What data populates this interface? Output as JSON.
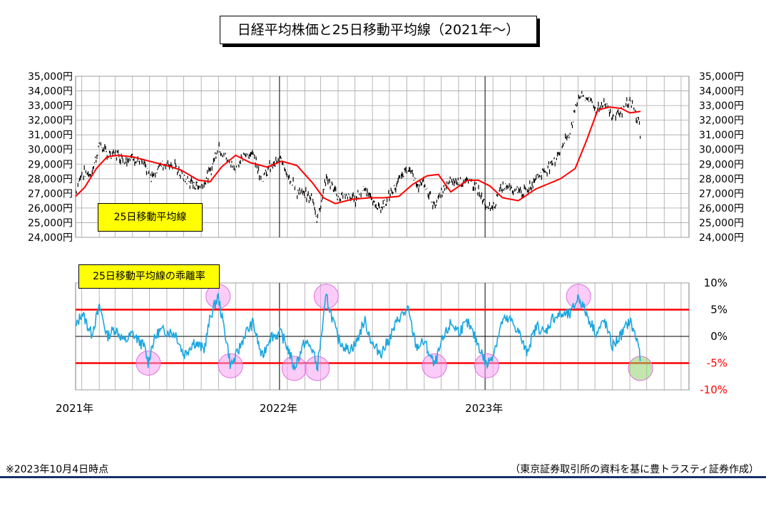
{
  "title": "日経平均株価と25日移動平均線（2021年～）",
  "footnote_left": "※2023年10月4日時点",
  "footnote_right": "（東京証券取引所の資料を基に豊トラスティ証券作成）",
  "colors": {
    "price": "#000000",
    "ma25": "#ff0000",
    "deviation": "#1aa7e0",
    "threshold": "#ff0000",
    "highlight": "#f5a3f0",
    "highlight_last": "#8fd26a",
    "grid": "#a6a6a6",
    "label_box": "#ffff00",
    "rule": "#17306a"
  },
  "chart_data": [
    {
      "type": "line",
      "title": "日経平均株価と25日移動平均線（2021年～）",
      "label": "25日移動平均線",
      "ylim": [
        24000,
        35000
      ],
      "y_ticks": [
        35000,
        34000,
        33000,
        32000,
        31000,
        30000,
        29000,
        28000,
        27000,
        26000,
        25000,
        24000
      ],
      "y_tick_labels": [
        "35,000円",
        "34,000円",
        "33,000円",
        "32,000円",
        "31,000円",
        "30,000円",
        "29,000円",
        "28,000円",
        "27,000円",
        "26,000円",
        "25,000円",
        "24,000円"
      ],
      "x_tick_labels": [
        "2021年",
        "2022年",
        "2023年"
      ],
      "x_range": [
        "2021-01-04",
        "2023-12-29"
      ],
      "grid": true,
      "series": [
        {
          "name": "日経平均株価",
          "style": "daily-bars",
          "x": [
            "2021-01-04",
            "2021-01-15",
            "2021-02-01",
            "2021-02-16",
            "2021-03-01",
            "2021-03-15",
            "2021-04-01",
            "2021-04-15",
            "2021-05-06",
            "2021-05-17",
            "2021-06-01",
            "2021-06-15",
            "2021-07-01",
            "2021-07-15",
            "2021-08-02",
            "2021-08-16",
            "2021-09-01",
            "2021-09-14",
            "2021-10-01",
            "2021-10-15",
            "2021-11-01",
            "2021-11-15",
            "2021-12-01",
            "2021-12-15",
            "2022-01-04",
            "2022-01-17",
            "2022-02-01",
            "2022-02-15",
            "2022-03-01",
            "2022-03-09",
            "2022-03-25",
            "2022-04-15",
            "2022-05-02",
            "2022-05-16",
            "2022-06-01",
            "2022-06-17",
            "2022-07-01",
            "2022-07-15",
            "2022-08-01",
            "2022-08-17",
            "2022-09-01",
            "2022-09-15",
            "2022-10-03",
            "2022-10-17",
            "2022-11-01",
            "2022-11-15",
            "2022-12-01",
            "2022-12-15",
            "2023-01-04",
            "2023-01-16",
            "2023-02-01",
            "2023-02-15",
            "2023-03-01",
            "2023-03-15",
            "2023-04-03",
            "2023-04-17",
            "2023-05-01",
            "2023-05-15",
            "2023-06-01",
            "2023-06-16",
            "2023-07-03",
            "2023-07-18",
            "2023-08-01",
            "2023-08-15",
            "2023-09-01",
            "2023-09-15",
            "2023-10-02",
            "2023-10-04"
          ],
          "values": [
            27200,
            28400,
            28300,
            30400,
            29600,
            29800,
            29300,
            29500,
            28900,
            28000,
            28900,
            29100,
            28800,
            28000,
            27600,
            27500,
            28500,
            30300,
            29200,
            28700,
            29600,
            29800,
            27900,
            28800,
            29300,
            28300,
            27100,
            26900,
            26600,
            25200,
            28100,
            26800,
            26800,
            26600,
            27500,
            26300,
            26000,
            26800,
            27800,
            28900,
            27600,
            27600,
            26200,
            27100,
            27800,
            27900,
            27800,
            27600,
            25900,
            26100,
            27500,
            27500,
            27300,
            27000,
            28200,
            28500,
            29100,
            30000,
            31200,
            33700,
            33500,
            32700,
            33200,
            32300,
            32700,
            33300,
            31800,
            30500
          ],
          "low": [
            26900,
            27700,
            27900,
            29500,
            28700,
            29000,
            28600,
            29000,
            27600,
            27600,
            28400,
            28700,
            28400,
            27600,
            27300,
            27200,
            28000,
            29900,
            28800,
            28400,
            29200,
            29400,
            27500,
            28300,
            28700,
            27900,
            26500,
            26400,
            25000,
            24700,
            27600,
            26400,
            26300,
            26200,
            26900,
            25500,
            25700,
            26400,
            27500,
            28500,
            27200,
            27000,
            25600,
            26600,
            27400,
            27500,
            27300,
            26900,
            25600,
            25800,
            27200,
            27100,
            26900,
            26600,
            27700,
            28200,
            28700,
            29500,
            30700,
            33000,
            32700,
            32000,
            32600,
            31600,
            32200,
            32800,
            31300,
            30400
          ],
          "high": [
            27400,
            28800,
            28600,
            30700,
            30200,
            30200,
            29700,
            29800,
            29300,
            28500,
            29200,
            29500,
            29100,
            28400,
            28000,
            27900,
            28900,
            30700,
            29600,
            29100,
            29900,
            30100,
            28300,
            29200,
            29400,
            28700,
            27500,
            27300,
            27000,
            25700,
            28400,
            27200,
            27100,
            27000,
            27800,
            26900,
            26300,
            27100,
            28100,
            29200,
            28000,
            28000,
            26600,
            27400,
            28100,
            28300,
            28100,
            27900,
            26200,
            26400,
            27800,
            27700,
            27600,
            27400,
            28500,
            28800,
            29300,
            30400,
            31600,
            33800,
            33800,
            33000,
            33500,
            32700,
            33000,
            33600,
            32200,
            30800
          ]
        },
        {
          "name": "25日移動平均線",
          "x": [
            "2021-01-04",
            "2021-01-20",
            "2021-02-10",
            "2021-03-01",
            "2021-03-20",
            "2021-04-15",
            "2021-05-15",
            "2021-06-15",
            "2021-07-10",
            "2021-08-10",
            "2021-08-31",
            "2021-09-20",
            "2021-10-15",
            "2021-11-10",
            "2021-12-10",
            "2022-01-05",
            "2022-02-01",
            "2022-03-01",
            "2022-03-20",
            "2022-04-10",
            "2022-05-10",
            "2022-06-10",
            "2022-07-05",
            "2022-08-01",
            "2022-08-25",
            "2022-09-20",
            "2022-10-10",
            "2022-11-01",
            "2022-12-01",
            "2022-12-20",
            "2023-01-10",
            "2023-02-01",
            "2023-03-01",
            "2023-04-01",
            "2023-04-20",
            "2023-05-15",
            "2023-06-10",
            "2023-06-30",
            "2023-07-20",
            "2023-08-10",
            "2023-08-31",
            "2023-09-15",
            "2023-10-04"
          ],
          "values": [
            26800,
            27400,
            28700,
            29500,
            29600,
            29500,
            29200,
            28900,
            28600,
            27900,
            27800,
            28800,
            29600,
            29100,
            28800,
            29200,
            28900,
            27700,
            26700,
            26300,
            26600,
            26700,
            26700,
            26800,
            27600,
            28200,
            28300,
            27100,
            27900,
            27900,
            27500,
            26700,
            26500,
            27300,
            27600,
            28000,
            28700,
            30600,
            32700,
            32900,
            32800,
            32500,
            32600
          ]
        }
      ]
    },
    {
      "type": "line",
      "title": "25日移動平均線の乖離率",
      "ylim": [
        -10,
        10
      ],
      "y_ticks": [
        10,
        5,
        0,
        -5,
        -10
      ],
      "y_tick_labels": [
        "10%",
        "5%",
        "0%",
        "-5%",
        "-10%"
      ],
      "x_tick_labels": [
        "2021年",
        "2022年",
        "2023年"
      ],
      "x_range": [
        "2021-01-04",
        "2023-12-29"
      ],
      "grid": true,
      "threshold_lines": [
        5,
        -5
      ],
      "series": [
        {
          "name": "乖離率",
          "x": [
            "2021-01-04",
            "2021-01-15",
            "2021-02-01",
            "2021-02-16",
            "2021-03-01",
            "2021-03-15",
            "2021-04-01",
            "2021-04-15",
            "2021-05-06",
            "2021-05-13",
            "2021-05-20",
            "2021-06-01",
            "2021-06-15",
            "2021-07-01",
            "2021-07-15",
            "2021-08-02",
            "2021-08-20",
            "2021-09-01",
            "2021-09-14",
            "2021-10-01",
            "2021-10-06",
            "2021-10-15",
            "2021-11-01",
            "2021-11-15",
            "2021-12-01",
            "2021-12-15",
            "2022-01-04",
            "2022-01-17",
            "2022-01-27",
            "2022-02-15",
            "2022-03-01",
            "2022-03-09",
            "2022-03-25",
            "2022-04-15",
            "2022-05-02",
            "2022-05-16",
            "2022-06-01",
            "2022-06-17",
            "2022-07-01",
            "2022-07-15",
            "2022-08-01",
            "2022-08-17",
            "2022-09-01",
            "2022-09-15",
            "2022-10-03",
            "2022-10-17",
            "2022-11-01",
            "2022-11-15",
            "2022-12-01",
            "2022-12-20",
            "2023-01-04",
            "2023-01-16",
            "2023-02-01",
            "2023-02-15",
            "2023-03-01",
            "2023-03-15",
            "2023-04-03",
            "2023-04-17",
            "2023-05-01",
            "2023-05-15",
            "2023-06-01",
            "2023-06-16",
            "2023-07-03",
            "2023-07-18",
            "2023-08-01",
            "2023-08-15",
            "2023-09-01",
            "2023-09-15",
            "2023-10-02",
            "2023-10-04"
          ],
          "values": [
            1.5,
            4.5,
            0.5,
            5.5,
            0.0,
            1.5,
            -1.0,
            0.5,
            -2.0,
            -5.0,
            -1.5,
            1.0,
            1.0,
            0.5,
            -3.5,
            -1.0,
            -2.5,
            4.0,
            7.5,
            -2.0,
            -5.5,
            -4.0,
            0.5,
            2.5,
            -4.0,
            0.0,
            0.5,
            -2.5,
            -6.0,
            -1.0,
            -2.5,
            -6.0,
            7.5,
            -0.5,
            -2.5,
            -1.5,
            3.0,
            -2.0,
            -3.0,
            -0.5,
            3.5,
            5.0,
            -2.0,
            -1.0,
            -5.5,
            -1.0,
            2.5,
            1.0,
            2.5,
            -1.5,
            -5.5,
            -3.0,
            3.0,
            3.0,
            1.0,
            -3.0,
            2.0,
            0.5,
            3.5,
            4.0,
            4.0,
            7.5,
            3.5,
            0.5,
            3.0,
            -2.0,
            0.5,
            3.0,
            -2.0,
            -6.0
          ]
        }
      ],
      "highlights": [
        "2021-05-13",
        "2021-09-14",
        "2021-10-06",
        "2022-01-27",
        "2022-03-09",
        "2022-03-25",
        "2022-10-03",
        "2023-01-04",
        "2023-06-16",
        "2023-10-04"
      ]
    }
  ]
}
